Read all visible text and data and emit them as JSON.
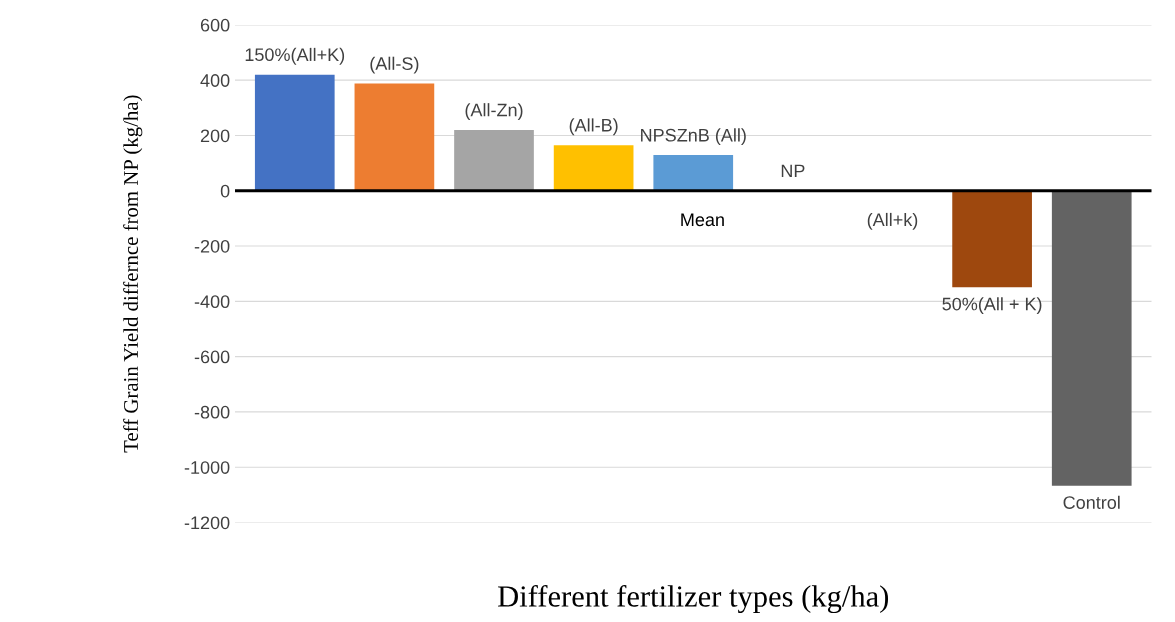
{
  "chart_data": {
    "type": "bar",
    "xlabel": "Different fertilizer types (kg/ha)",
    "ylabel": "Teff Grain Yield differnce from NP (kg/ha)",
    "categories": [
      "150%(All+K)",
      "(All-S)",
      "(All-Zn)",
      "(All-B)",
      "NPSZnB (All)",
      "NP",
      "(All+k)",
      "50%(All + K)",
      "Control"
    ],
    "values": [
      420,
      388,
      220,
      165,
      129,
      0,
      null,
      -349,
      -1067
    ],
    "colors": [
      "#4472c4",
      "#ed7d31",
      "#a5a5a5",
      "#ffc000",
      "#5b9bd5",
      "#70ad47",
      "#264478",
      "#9e480e",
      "#636363"
    ],
    "annotations": [
      "Mean"
    ],
    "ylim": [
      -1200,
      600
    ],
    "yticks": [
      -1200,
      -1000,
      -800,
      -600,
      -400,
      -200,
      0,
      200,
      400,
      600
    ],
    "grid": "y",
    "tick_labels": "y",
    "ref_lines": [
      {
        "axis": "y",
        "value": 0,
        "color": "#000000"
      }
    ]
  }
}
